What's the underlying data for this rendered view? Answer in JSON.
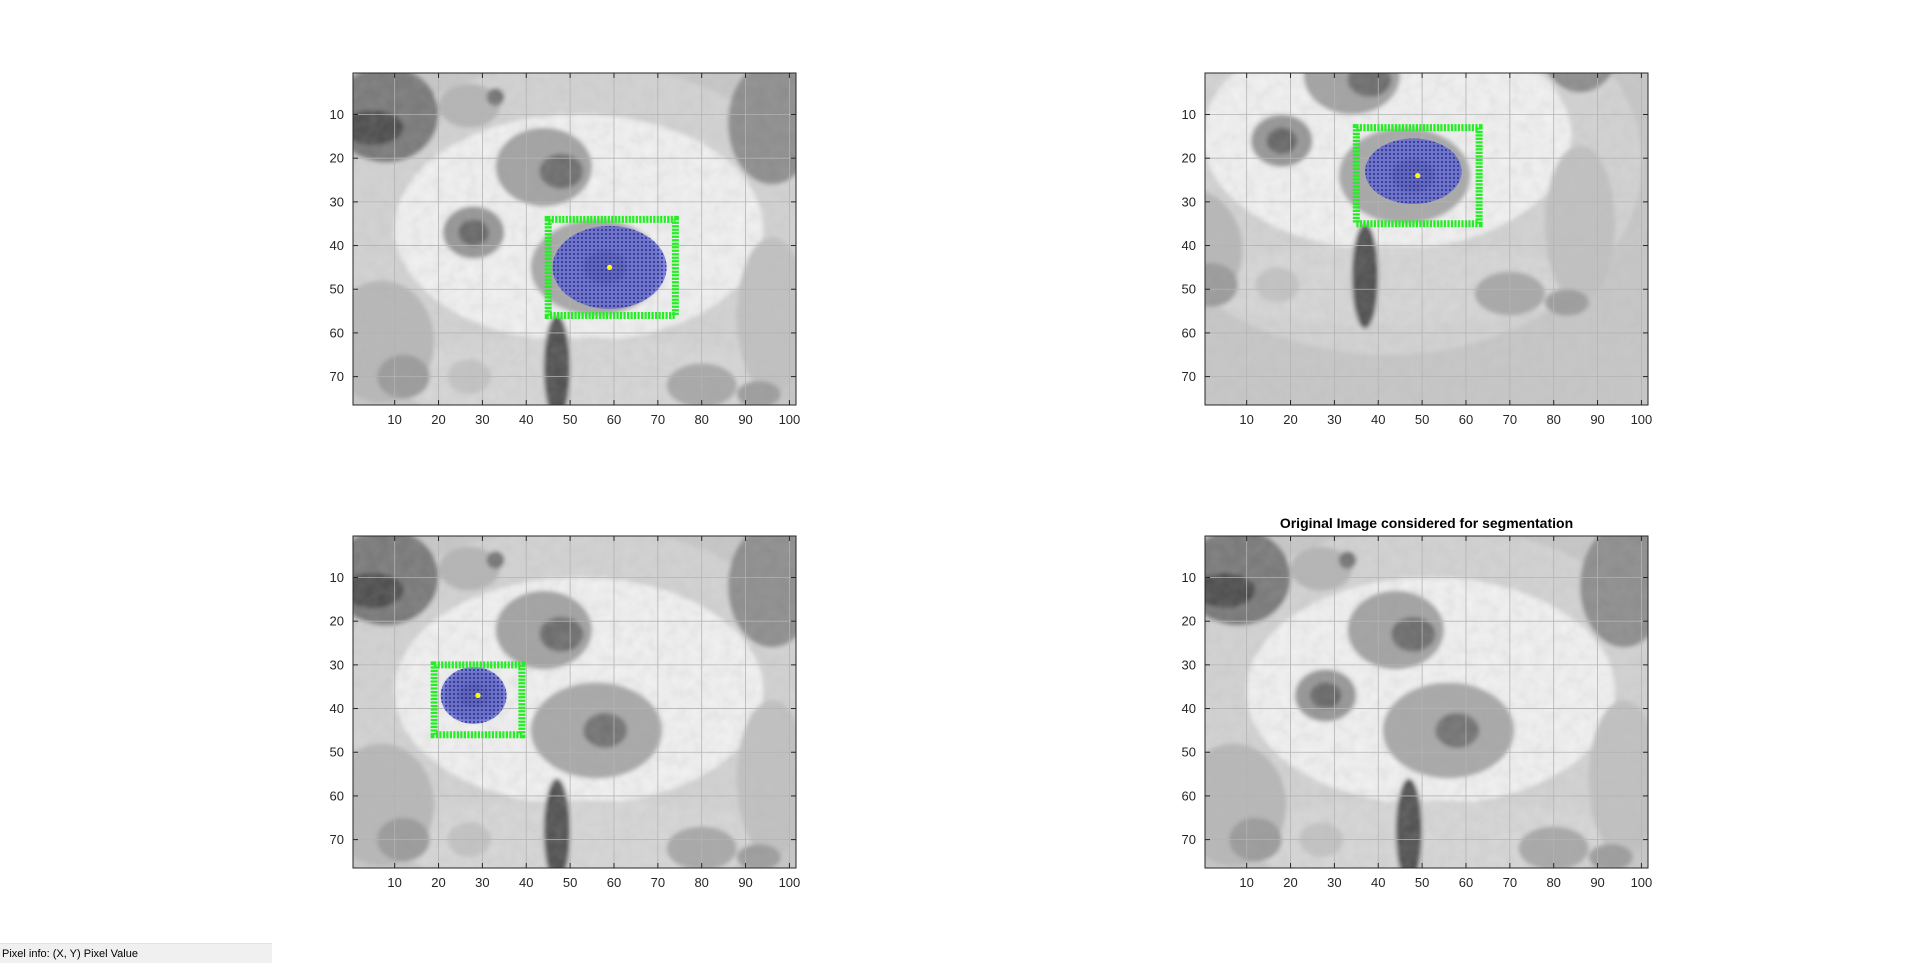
{
  "status_bar": {
    "label": "Pixel info:",
    "coords": "(X, Y)",
    "value_label": "Pixel Value"
  },
  "colors": {
    "box": "#22ee22",
    "region_fill": "#5a5fd6",
    "region_dot": "#1f2a8a",
    "seed": "#ffff00",
    "grid": "#b3b3b3",
    "axis": "#262626"
  },
  "chart_data": [
    {
      "type": "image",
      "title": "",
      "xlim": [
        0.5,
        101.5
      ],
      "ylim": [
        0.5,
        76.5
      ],
      "xticks": [
        10,
        20,
        30,
        40,
        50,
        60,
        70,
        80,
        90,
        100
      ],
      "yticks": [
        10,
        20,
        30,
        40,
        50,
        60,
        70
      ],
      "grid": true,
      "bounding_box": {
        "x1": 45,
        "y1": 34,
        "x2": 74,
        "y2": 56
      },
      "region": {
        "cx": 59,
        "cy": 45,
        "rx": 13,
        "ry": 9.5
      },
      "seed_point": {
        "x": 59,
        "y": 45
      },
      "shift": [
        0,
        0
      ]
    },
    {
      "type": "image",
      "title": "",
      "xlim": [
        0.5,
        101.5
      ],
      "ylim": [
        0.5,
        76.5
      ],
      "xticks": [
        10,
        20,
        30,
        40,
        50,
        60,
        70,
        80,
        90,
        100
      ],
      "yticks": [
        10,
        20,
        30,
        40,
        50,
        60,
        70
      ],
      "grid": true,
      "bounding_box": {
        "x1": 35,
        "y1": 13,
        "x2": 63,
        "y2": 35
      },
      "region": {
        "cx": 48,
        "cy": 23,
        "rx": 11,
        "ry": 7.5
      },
      "seed_point": {
        "x": 49,
        "y": 24
      },
      "shift": [
        -10,
        -21
      ]
    },
    {
      "type": "image",
      "title": "",
      "xlim": [
        0.5,
        101.5
      ],
      "ylim": [
        0.5,
        76.5
      ],
      "xticks": [
        10,
        20,
        30,
        40,
        50,
        60,
        70,
        80,
        90,
        100
      ],
      "yticks": [
        10,
        20,
        30,
        40,
        50,
        60,
        70
      ],
      "grid": true,
      "bounding_box": {
        "x1": 19,
        "y1": 30,
        "x2": 39,
        "y2": 46
      },
      "region": {
        "cx": 28,
        "cy": 37,
        "rx": 7.5,
        "ry": 6.5
      },
      "seed_point": {
        "x": 29,
        "y": 37
      },
      "shift": [
        0,
        0
      ]
    },
    {
      "type": "image",
      "title": "Original Image considered for segmentation",
      "xlim": [
        0.5,
        101.5
      ],
      "ylim": [
        0.5,
        76.5
      ],
      "xticks": [
        10,
        20,
        30,
        40,
        50,
        60,
        70,
        80,
        90,
        100
      ],
      "yticks": [
        10,
        20,
        30,
        40,
        50,
        60,
        70
      ],
      "grid": true,
      "bounding_box": null,
      "region": null,
      "seed_point": null,
      "shift": [
        0,
        0
      ]
    }
  ]
}
